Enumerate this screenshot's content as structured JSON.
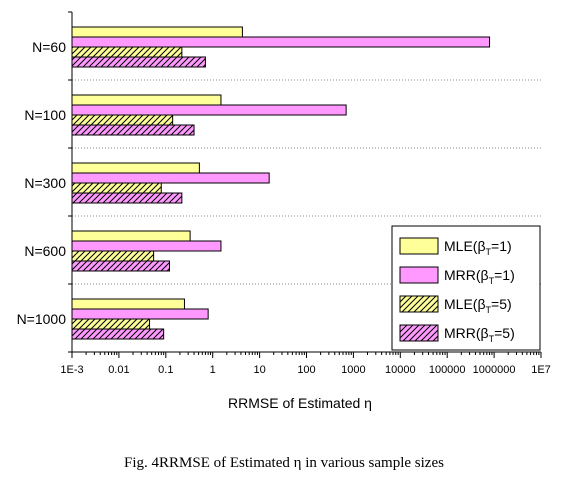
{
  "chart_data": {
    "type": "bar",
    "orientation": "horizontal",
    "categories": [
      "N=60",
      "N=100",
      "N=300",
      "N=600",
      "N=1000"
    ],
    "series": [
      {
        "name": "MLE(βT=1)",
        "label_main": "MLE(β",
        "label_sub": "T",
        "label_tail": "=1)",
        "values": [
          4.3,
          1.5,
          0.52,
          0.33,
          0.25
        ],
        "fill": "#ffff99",
        "pattern": "solid"
      },
      {
        "name": "MRR(βT=1)",
        "label_main": "MRR(β",
        "label_sub": "T",
        "label_tail": "=1)",
        "values": [
          800000,
          700,
          16,
          1.5,
          0.8
        ],
        "fill": "#ff99ff",
        "pattern": "solid"
      },
      {
        "name": "MLE(βT=5)",
        "label_main": "MLE(β",
        "label_sub": "T",
        "label_tail": "=5)",
        "values": [
          0.22,
          0.14,
          0.08,
          0.055,
          0.045
        ],
        "fill": "#ffff99",
        "pattern": "hatch"
      },
      {
        "name": "MRR(βT=5)",
        "label_main": "MRR(β",
        "label_sub": "T",
        "label_tail": "=5)",
        "values": [
          0.7,
          0.4,
          0.22,
          0.12,
          0.09
        ],
        "fill": "#ff99ff",
        "pattern": "hatch"
      }
    ],
    "x_scale": "log",
    "xlim": [
      0.001,
      10000000
    ],
    "x_ticks": [
      {
        "value": 0.001,
        "label": "1E-3"
      },
      {
        "value": 0.01,
        "label": "0.01"
      },
      {
        "value": 0.1,
        "label": "0.1"
      },
      {
        "value": 1,
        "label": "1"
      },
      {
        "value": 10,
        "label": "10"
      },
      {
        "value": 100,
        "label": "100"
      },
      {
        "value": 1000,
        "label": "1000"
      },
      {
        "value": 10000,
        "label": "10000"
      },
      {
        "value": 100000,
        "label": "100000"
      },
      {
        "value": 1000000,
        "label": "1000000"
      },
      {
        "value": 10000000,
        "label": "1E7"
      }
    ],
    "xlabel": "RRMSE of Estimated η",
    "legend_position": "bottom-right",
    "grid": "dotted separators between categories"
  },
  "caption": "Fig. 4RRMSE of Estimated η in various sample sizes"
}
